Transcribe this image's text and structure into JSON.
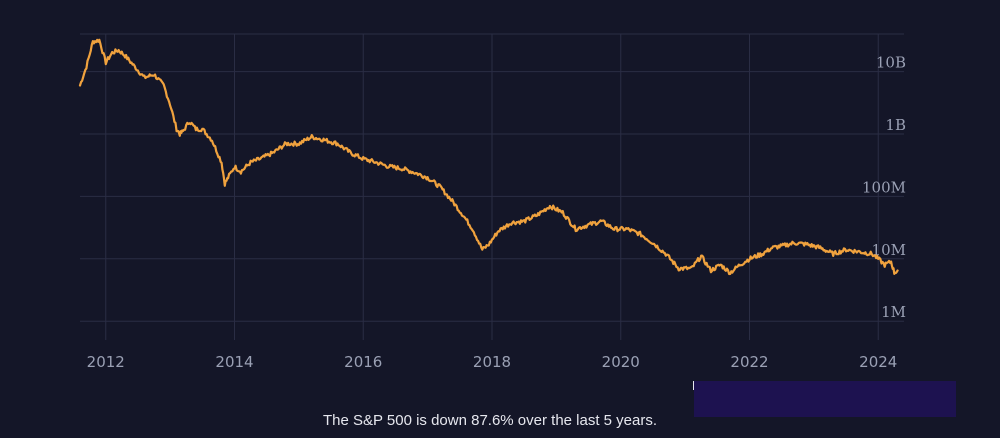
{
  "chart_data": {
    "type": "line",
    "title": "",
    "xlabel": "",
    "ylabel": "",
    "yscale": "log",
    "xlim": [
      2011.6,
      2024.4
    ],
    "ylim": [
      500000,
      40000000000
    ],
    "x_ticks": [
      "2012",
      "2014",
      "2016",
      "2018",
      "2020",
      "2022",
      "2024"
    ],
    "y_ticks": [
      {
        "label": "10B",
        "value": 10000000000
      },
      {
        "label": "1B",
        "value": 1000000000
      },
      {
        "label": "100M",
        "value": 100000000
      },
      {
        "label": "10M",
        "value": 10000000
      },
      {
        "label": "1M",
        "value": 1000000
      }
    ],
    "grid": true,
    "series": [
      {
        "color": "#f0a23e",
        "x": [
          2011.6,
          2011.7,
          2011.8,
          2011.9,
          2012.0,
          2012.1,
          2012.2,
          2012.3,
          2012.45,
          2012.6,
          2012.75,
          2012.9,
          2013.0,
          2013.1,
          2013.15,
          2013.2,
          2013.3,
          2013.4,
          2013.5,
          2013.65,
          2013.8,
          2013.85,
          2013.9,
          2014.0,
          2014.1,
          2014.25,
          2014.4,
          2014.6,
          2014.8,
          2015.0,
          2015.2,
          2015.4,
          2015.6,
          2015.8,
          2016.0,
          2016.2,
          2016.4,
          2016.6,
          2016.8,
          2017.0,
          2017.2,
          2017.4,
          2017.55,
          2017.7,
          2017.85,
          2017.95,
          2018.1,
          2018.3,
          2018.5,
          2018.7,
          2018.9,
          2019.1,
          2019.3,
          2019.5,
          2019.7,
          2019.9,
          2020.1,
          2020.3,
          2020.5,
          2020.7,
          2020.9,
          2021.1,
          2021.25,
          2021.4,
          2021.55,
          2021.7,
          2021.85,
          2022.0,
          2022.2,
          2022.35,
          2022.5,
          2022.7,
          2022.9,
          2023.1,
          2023.3,
          2023.5,
          2023.7,
          2023.9,
          2024.0,
          2024.1,
          2024.2,
          2024.25,
          2024.3
        ],
        "y": [
          6000000000,
          12000000000,
          30000000000,
          32000000000,
          14000000000,
          20000000000,
          22000000000,
          18000000000,
          12000000000,
          8000000000,
          9000000000,
          6000000000,
          3000000000,
          1200000000,
          1000000000,
          1100000000,
          1600000000,
          1200000000,
          1200000000,
          800000000,
          350000000,
          160000000,
          200000000,
          300000000,
          250000000,
          350000000,
          400000000,
          500000000,
          700000000,
          700000000,
          900000000,
          800000000,
          700000000,
          500000000,
          400000000,
          350000000,
          300000000,
          280000000,
          240000000,
          200000000,
          140000000,
          80000000,
          50000000,
          30000000,
          14000000,
          17000000,
          28000000,
          38000000,
          40000000,
          50000000,
          70000000,
          55000000,
          30000000,
          35000000,
          40000000,
          30000000,
          30000000,
          25000000,
          18000000,
          12000000,
          7000000,
          7000000,
          11000000,
          6500000,
          8000000,
          6000000,
          8000000,
          10000000,
          12000000,
          15000000,
          16000000,
          18000000,
          17000000,
          15000000,
          12000000,
          14000000,
          13000000,
          12000000,
          10000000,
          8000000,
          9000000,
          6000000,
          6500000
        ]
      }
    ]
  },
  "caption": "The S&P 500 is down 87.6% over the last 5 years."
}
